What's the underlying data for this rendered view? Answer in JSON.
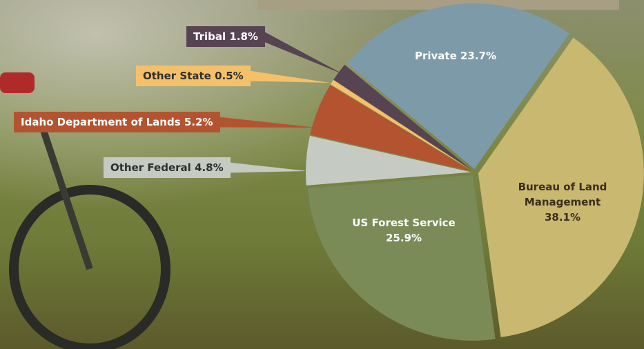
{
  "chart_data": {
    "type": "pie",
    "categories": [
      "Bureau of Land Management",
      "US Forest Service",
      "Other Federal",
      "Idaho Department of Lands",
      "Other State",
      "Tribal",
      "Private"
    ],
    "values": [
      38.1,
      25.9,
      4.8,
      5.2,
      0.5,
      1.8,
      23.7
    ],
    "value_labels": [
      "38.1%",
      "25.9%",
      "4.8%",
      "5.2%",
      "0.5%",
      "1.8%",
      "23.7%"
    ],
    "colors": [
      "#c9b870",
      "#7a8b58",
      "#c5cbc3",
      "#b4532f",
      "#f5c06a",
      "#574452",
      "#7d9aa8"
    ]
  }
}
